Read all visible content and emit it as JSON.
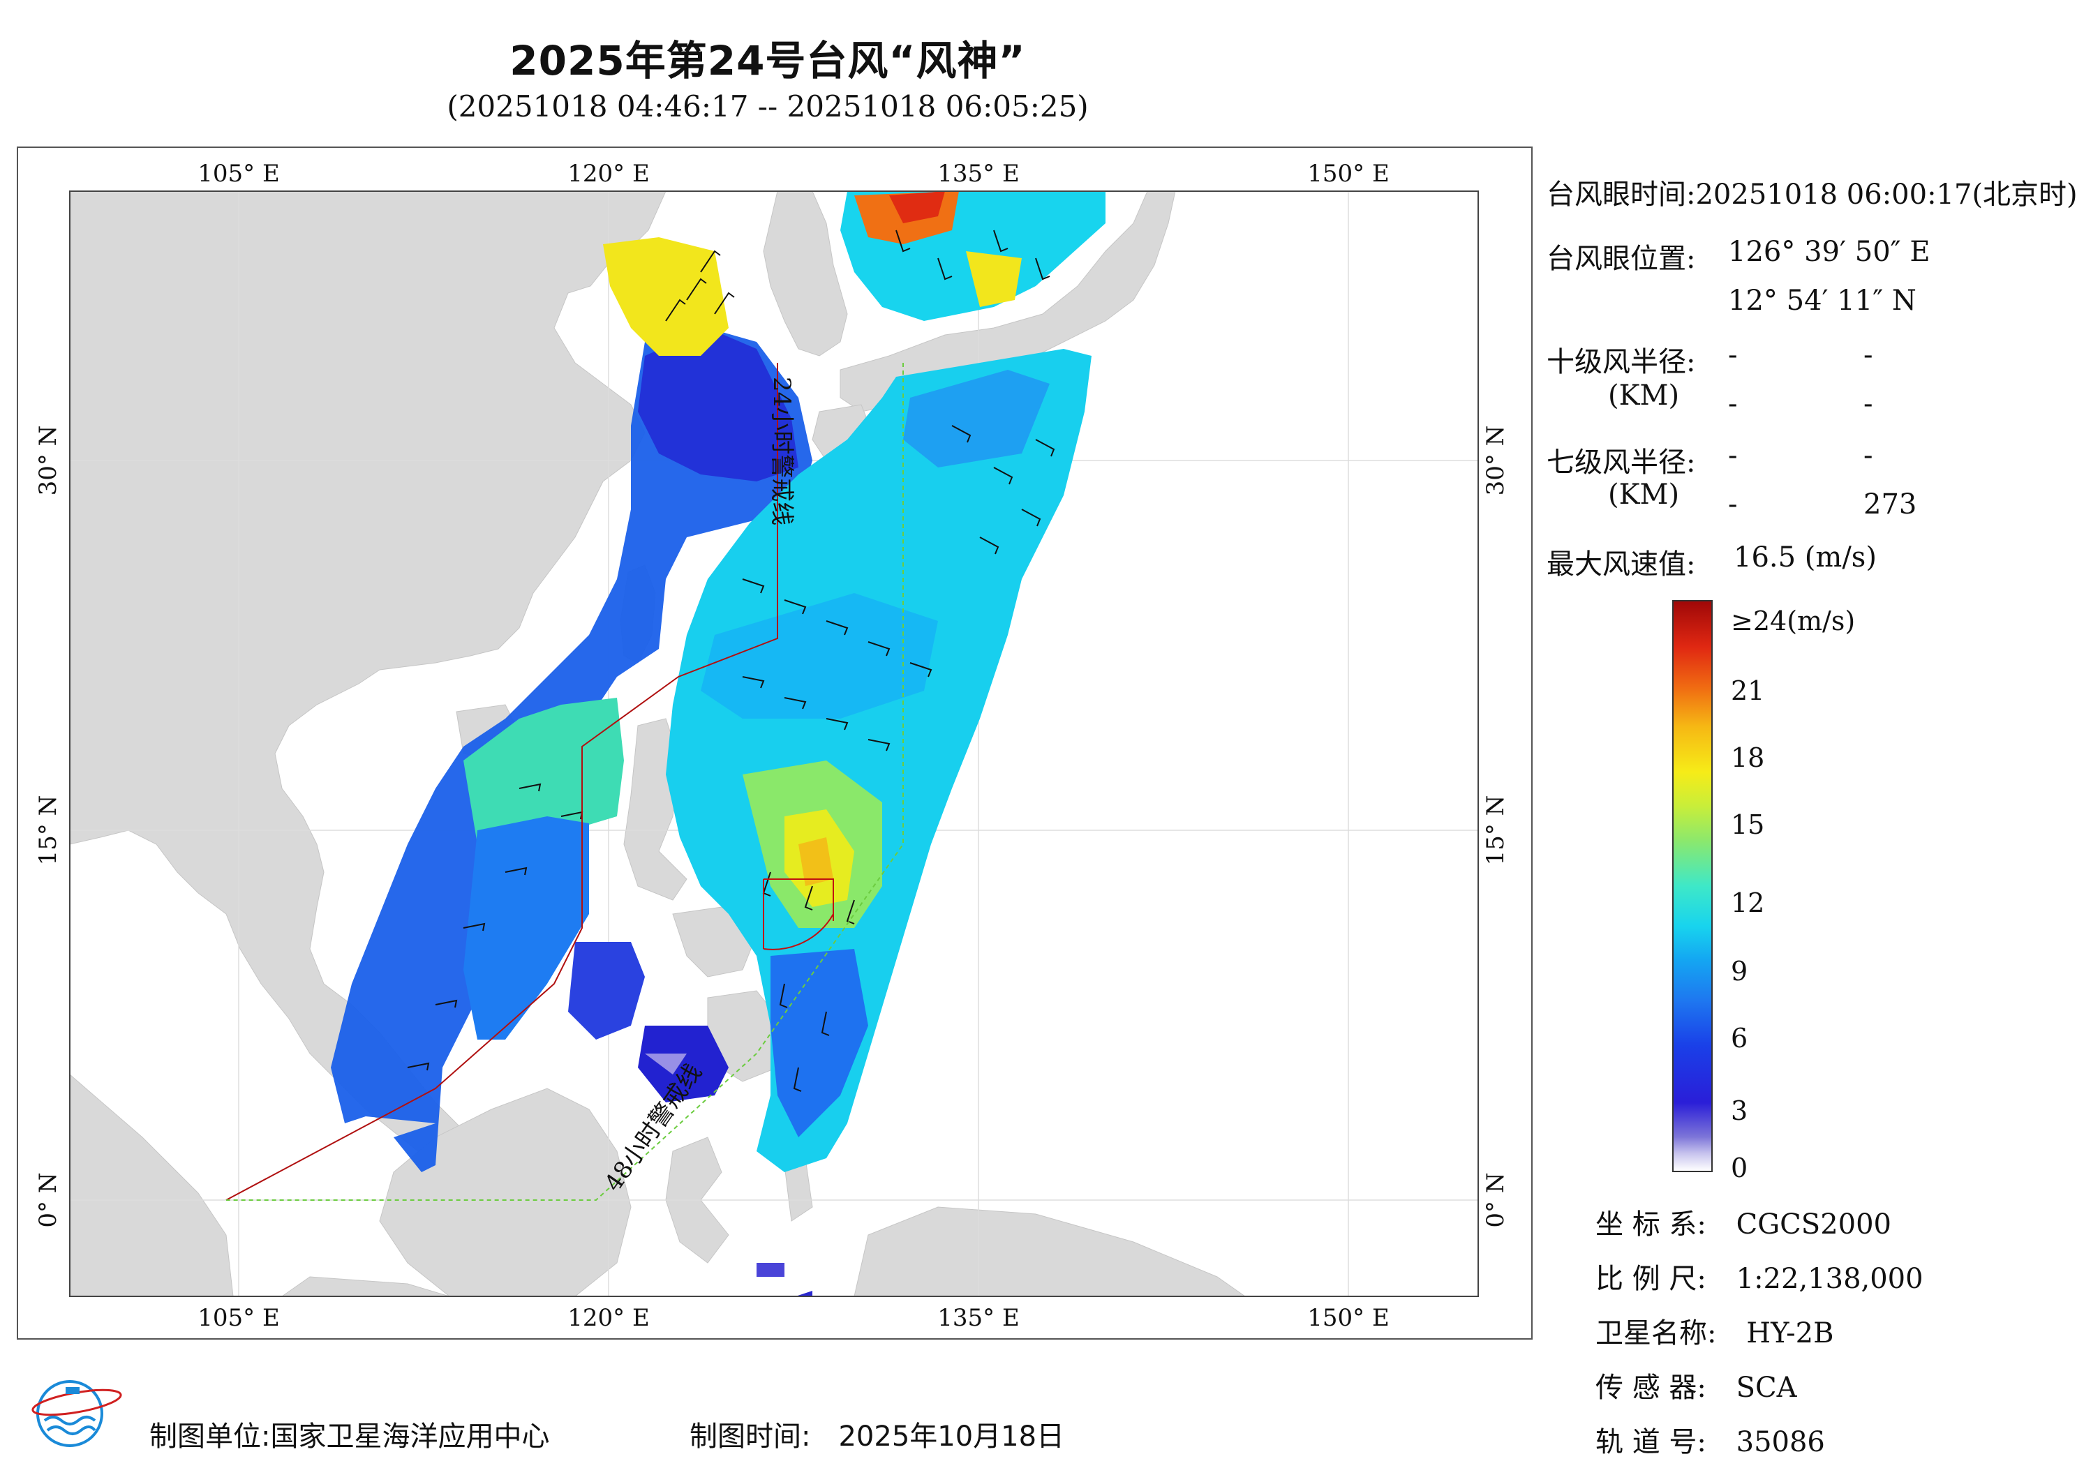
{
  "title": "2025年第24号台风“风神”",
  "subtitle": "(20251018 04:46:17 -- 20251018 06:05:25)",
  "map": {
    "top_ticks": [
      "105° E",
      "120° E",
      "135° E",
      "150° E"
    ],
    "bottom_ticks": [
      "105° E",
      "120° E",
      "135° E",
      "150° E"
    ],
    "left_ticks": [
      "30° N",
      "15° N",
      "0° N"
    ],
    "right_ticks": [
      "30° N",
      "15° N",
      "0° N"
    ],
    "warning_24h": "24小时警戒线",
    "warning_48h": "48小时警戒线",
    "land_color": "#d9d9d9",
    "sea_color": "#ffffff"
  },
  "info": {
    "eye_time_label": "台风眼时间:",
    "eye_time_value": "20251018 06:00:17(北京时)",
    "eye_pos_label": "台风眼位置:",
    "eye_lon": "126° 39′ 50″ E",
    "eye_lat": "12° 54′ 11″ N",
    "r10_label": "十级风半径:",
    "km_label": "(KM)",
    "r10_values": [
      "-",
      "-",
      "-",
      "-"
    ],
    "r7_label": "七级风半径:",
    "r7_values": [
      "-",
      "-",
      "-",
      "273"
    ],
    "max_wind_label": "最大风速值:",
    "max_wind_value": "16.5 (m/s)"
  },
  "colorbar": {
    "ticks": [
      "≥24(m/s)",
      "21",
      "18",
      "15",
      "12",
      "9",
      "6",
      "3",
      "0"
    ]
  },
  "meta": {
    "coord_label": "坐 标 系:",
    "coord_value": "CGCS2000",
    "scale_label": "比 例 尺:",
    "scale_value": "1:22,138,000",
    "sat_label": "卫星名称:",
    "sat_value": "HY-2B",
    "sensor_label": "传 感 器:",
    "sensor_value": "SCA",
    "orbit_label": "轨 道 号:",
    "orbit_value": "35086"
  },
  "footer": {
    "org_label": "制图单位:",
    "org_value": "国家卫星海洋应用中心",
    "date_label": "制图时间:",
    "date_value": "2025年10月18日"
  }
}
